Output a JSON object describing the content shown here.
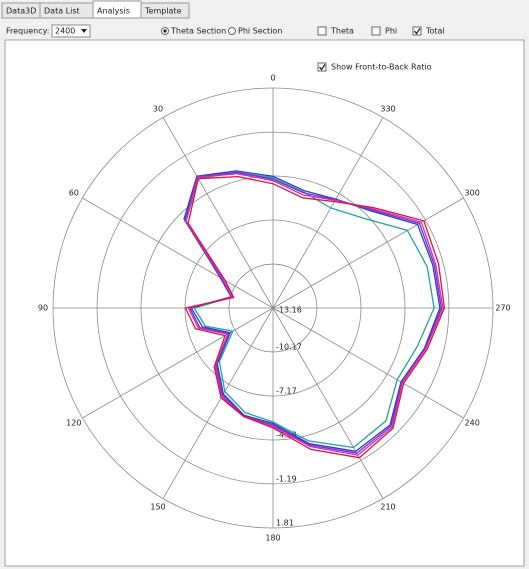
{
  "ui": {
    "tabs": [
      {
        "label": "Data3D",
        "active": false
      },
      {
        "label": "Data List",
        "active": false
      },
      {
        "label": "Analysis",
        "active": true
      },
      {
        "label": "Template",
        "active": false
      }
    ],
    "frequency_label": "Frequency:",
    "frequency_value": "2400",
    "radios": [
      {
        "label": "Theta Section",
        "selected": true
      },
      {
        "label": "Phi Section",
        "selected": false
      }
    ],
    "checkboxes": [
      {
        "label": "Theta",
        "checked": false
      },
      {
        "label": "Phi",
        "checked": false
      },
      {
        "label": "Total",
        "checked": true
      }
    ],
    "ratio_checkbox": {
      "label": "Show Front-to-Back Ratio",
      "checked": true
    }
  },
  "chart_data": {
    "type": "polar",
    "theta": [
      0,
      15,
      30,
      45,
      60,
      75,
      90,
      105,
      120,
      135,
      150,
      165,
      180,
      195,
      210,
      225,
      240,
      255,
      270,
      285,
      300,
      315,
      330,
      345
    ],
    "thetaticks": [
      0,
      30,
      60,
      90,
      120,
      150,
      180,
      210,
      240,
      270,
      300,
      330
    ],
    "rlim": [
      -13.16,
      1.81
    ],
    "rticks": [
      -13.16,
      -10.17,
      -7.17,
      -4.18,
      -1.19,
      1.81
    ],
    "grid": true,
    "series": [
      {
        "color": "#1fa3a3",
        "values": [
          -4.3,
          -3.6,
          -3.0,
          -4.8,
          -9.2,
          -10.3,
          -7.8,
          -8.4,
          -10.0,
          -8.0,
          -6.6,
          -5.8,
          -5.4,
          -3.8,
          -2.2,
          -2.3,
          -3.4,
          -3.0,
          -2.2,
          -2.3,
          -2.6,
          -4.5,
          -5.3,
          -5.0
        ]
      },
      {
        "color": "#2a3fd0",
        "values": [
          -4.2,
          -3.5,
          -2.8,
          -4.6,
          -9.0,
          -10.2,
          -7.6,
          -8.2,
          -9.8,
          -7.8,
          -6.4,
          -5.6,
          -5.3,
          -3.6,
          -1.9,
          -1.9,
          -3.1,
          -2.5,
          -1.8,
          -1.9,
          -1.8,
          -3.8,
          -4.6,
          -4.9
        ]
      },
      {
        "color": "#7a2fc4",
        "values": [
          -4.4,
          -3.6,
          -2.85,
          -4.7,
          -9.1,
          -10.25,
          -7.5,
          -8.0,
          -9.7,
          -7.7,
          -6.3,
          -5.55,
          -5.2,
          -3.5,
          -1.75,
          -1.8,
          -3.05,
          -2.45,
          -1.7,
          -1.8,
          -1.65,
          -3.7,
          -4.65,
          -5.05
        ]
      },
      {
        "color": "#c832c0",
        "values": [
          -4.5,
          -3.7,
          -2.9,
          -4.8,
          -9.2,
          -10.3,
          -7.4,
          -7.9,
          -9.6,
          -7.6,
          -6.2,
          -5.5,
          -5.1,
          -3.4,
          -1.6,
          -1.7,
          -3.0,
          -2.4,
          -1.6,
          -1.7,
          -1.5,
          -3.6,
          -4.7,
          -5.2
        ]
      },
      {
        "color": "#e0123c",
        "values": [
          -4.7,
          -3.9,
          -3.0,
          -5.0,
          -9.4,
          -10.4,
          -7.2,
          -7.7,
          -9.4,
          -7.5,
          -6.1,
          -5.5,
          -5.0,
          -3.2,
          -1.4,
          -1.6,
          -2.9,
          -2.3,
          -1.5,
          -1.5,
          -1.3,
          -3.5,
          -4.8,
          -5.4
        ]
      }
    ]
  }
}
